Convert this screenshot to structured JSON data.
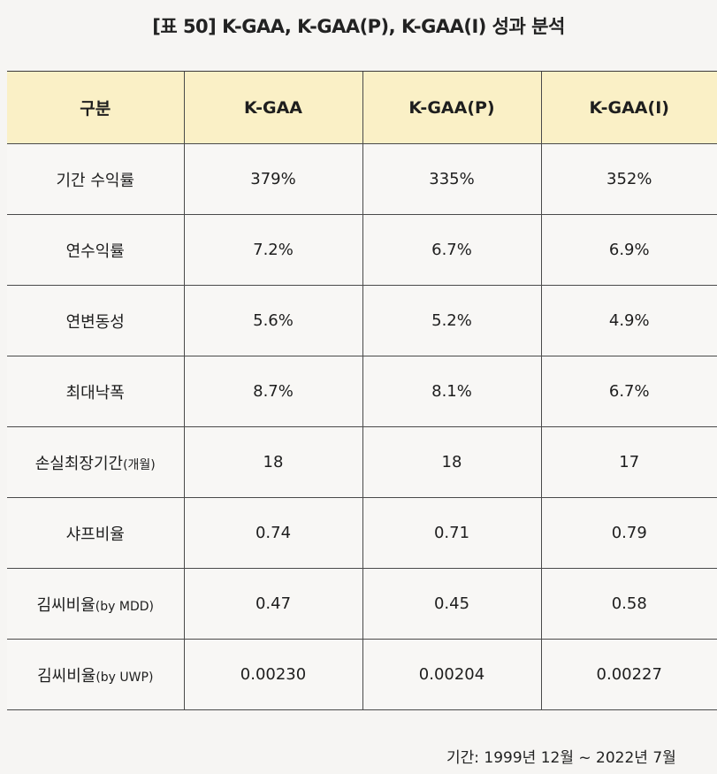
{
  "title": "[표 50] K-GAA, K-GAA(P), K-GAA(I) 성과 분석",
  "table": {
    "headers": [
      "구분",
      "K-GAA",
      "K-GAA(P)",
      "K-GAA(I)"
    ],
    "rows": [
      {
        "label": "기간 수익률",
        "label_suffix": "",
        "values": [
          "379%",
          "335%",
          "352%"
        ]
      },
      {
        "label": "연수익률",
        "label_suffix": "",
        "values": [
          "7.2%",
          "6.7%",
          "6.9%"
        ]
      },
      {
        "label": "연변동성",
        "label_suffix": "",
        "values": [
          "5.6%",
          "5.2%",
          "4.9%"
        ]
      },
      {
        "label": "최대낙폭",
        "label_suffix": "",
        "values": [
          "8.7%",
          "8.1%",
          "6.7%"
        ]
      },
      {
        "label": "손실최장기간",
        "label_suffix": "(개월)",
        "values": [
          "18",
          "18",
          "17"
        ]
      },
      {
        "label": "샤프비율",
        "label_suffix": "",
        "values": [
          "0.74",
          "0.71",
          "0.79"
        ]
      },
      {
        "label": "김씨비율",
        "label_suffix": "(by MDD)",
        "values": [
          "0.47",
          "0.45",
          "0.58"
        ]
      },
      {
        "label": "김씨비율",
        "label_suffix": "(by UWP)",
        "values": [
          "0.00230",
          "0.00204",
          "0.00227"
        ]
      }
    ]
  },
  "footnote": "기간: 1999년 12월 ~ 2022년 7월"
}
